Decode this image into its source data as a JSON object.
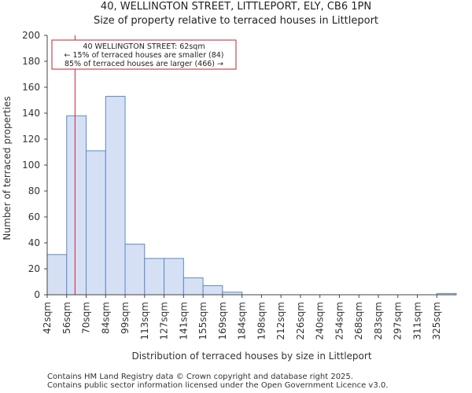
{
  "chart_data": {
    "type": "bar",
    "title": "40, WELLINGTON STREET, LITTLEPORT, ELY, CB6 1PN",
    "subtitle": "Size of property relative to terraced houses in Littleport",
    "xlabel": "Distribution of terraced houses by size in Littleport",
    "ylabel": "Number of terraced properties",
    "categories": [
      "42sqm",
      "56sqm",
      "70sqm",
      "84sqm",
      "99sqm",
      "113sqm",
      "127sqm",
      "141sqm",
      "155sqm",
      "169sqm",
      "184sqm",
      "198sqm",
      "212sqm",
      "226sqm",
      "240sqm",
      "254sqm",
      "268sqm",
      "283sqm",
      "297sqm",
      "311sqm",
      "325sqm"
    ],
    "values": [
      31,
      138,
      111,
      153,
      39,
      28,
      28,
      13,
      7,
      2,
      0,
      0,
      0,
      0,
      0,
      0,
      0,
      0,
      0,
      0,
      1
    ],
    "ylim": [
      0,
      200
    ],
    "yticks": [
      0,
      20,
      40,
      60,
      80,
      100,
      120,
      140,
      160,
      180,
      200
    ],
    "bar_color": "#d6e0f5",
    "bar_edge_color": "#5b8ac7",
    "marker": {
      "value_sqm": 62,
      "color": "#c0262d",
      "lines": [
        "40 WELLINGTON STREET: 62sqm",
        "← 15% of terraced houses are smaller (84)",
        "85% of terraced houses are larger (466) →"
      ]
    }
  },
  "footer": {
    "line1": "Contains HM Land Registry data © Crown copyright and database right 2025.",
    "line2": "Contains public sector information licensed under the Open Government Licence v3.0."
  }
}
